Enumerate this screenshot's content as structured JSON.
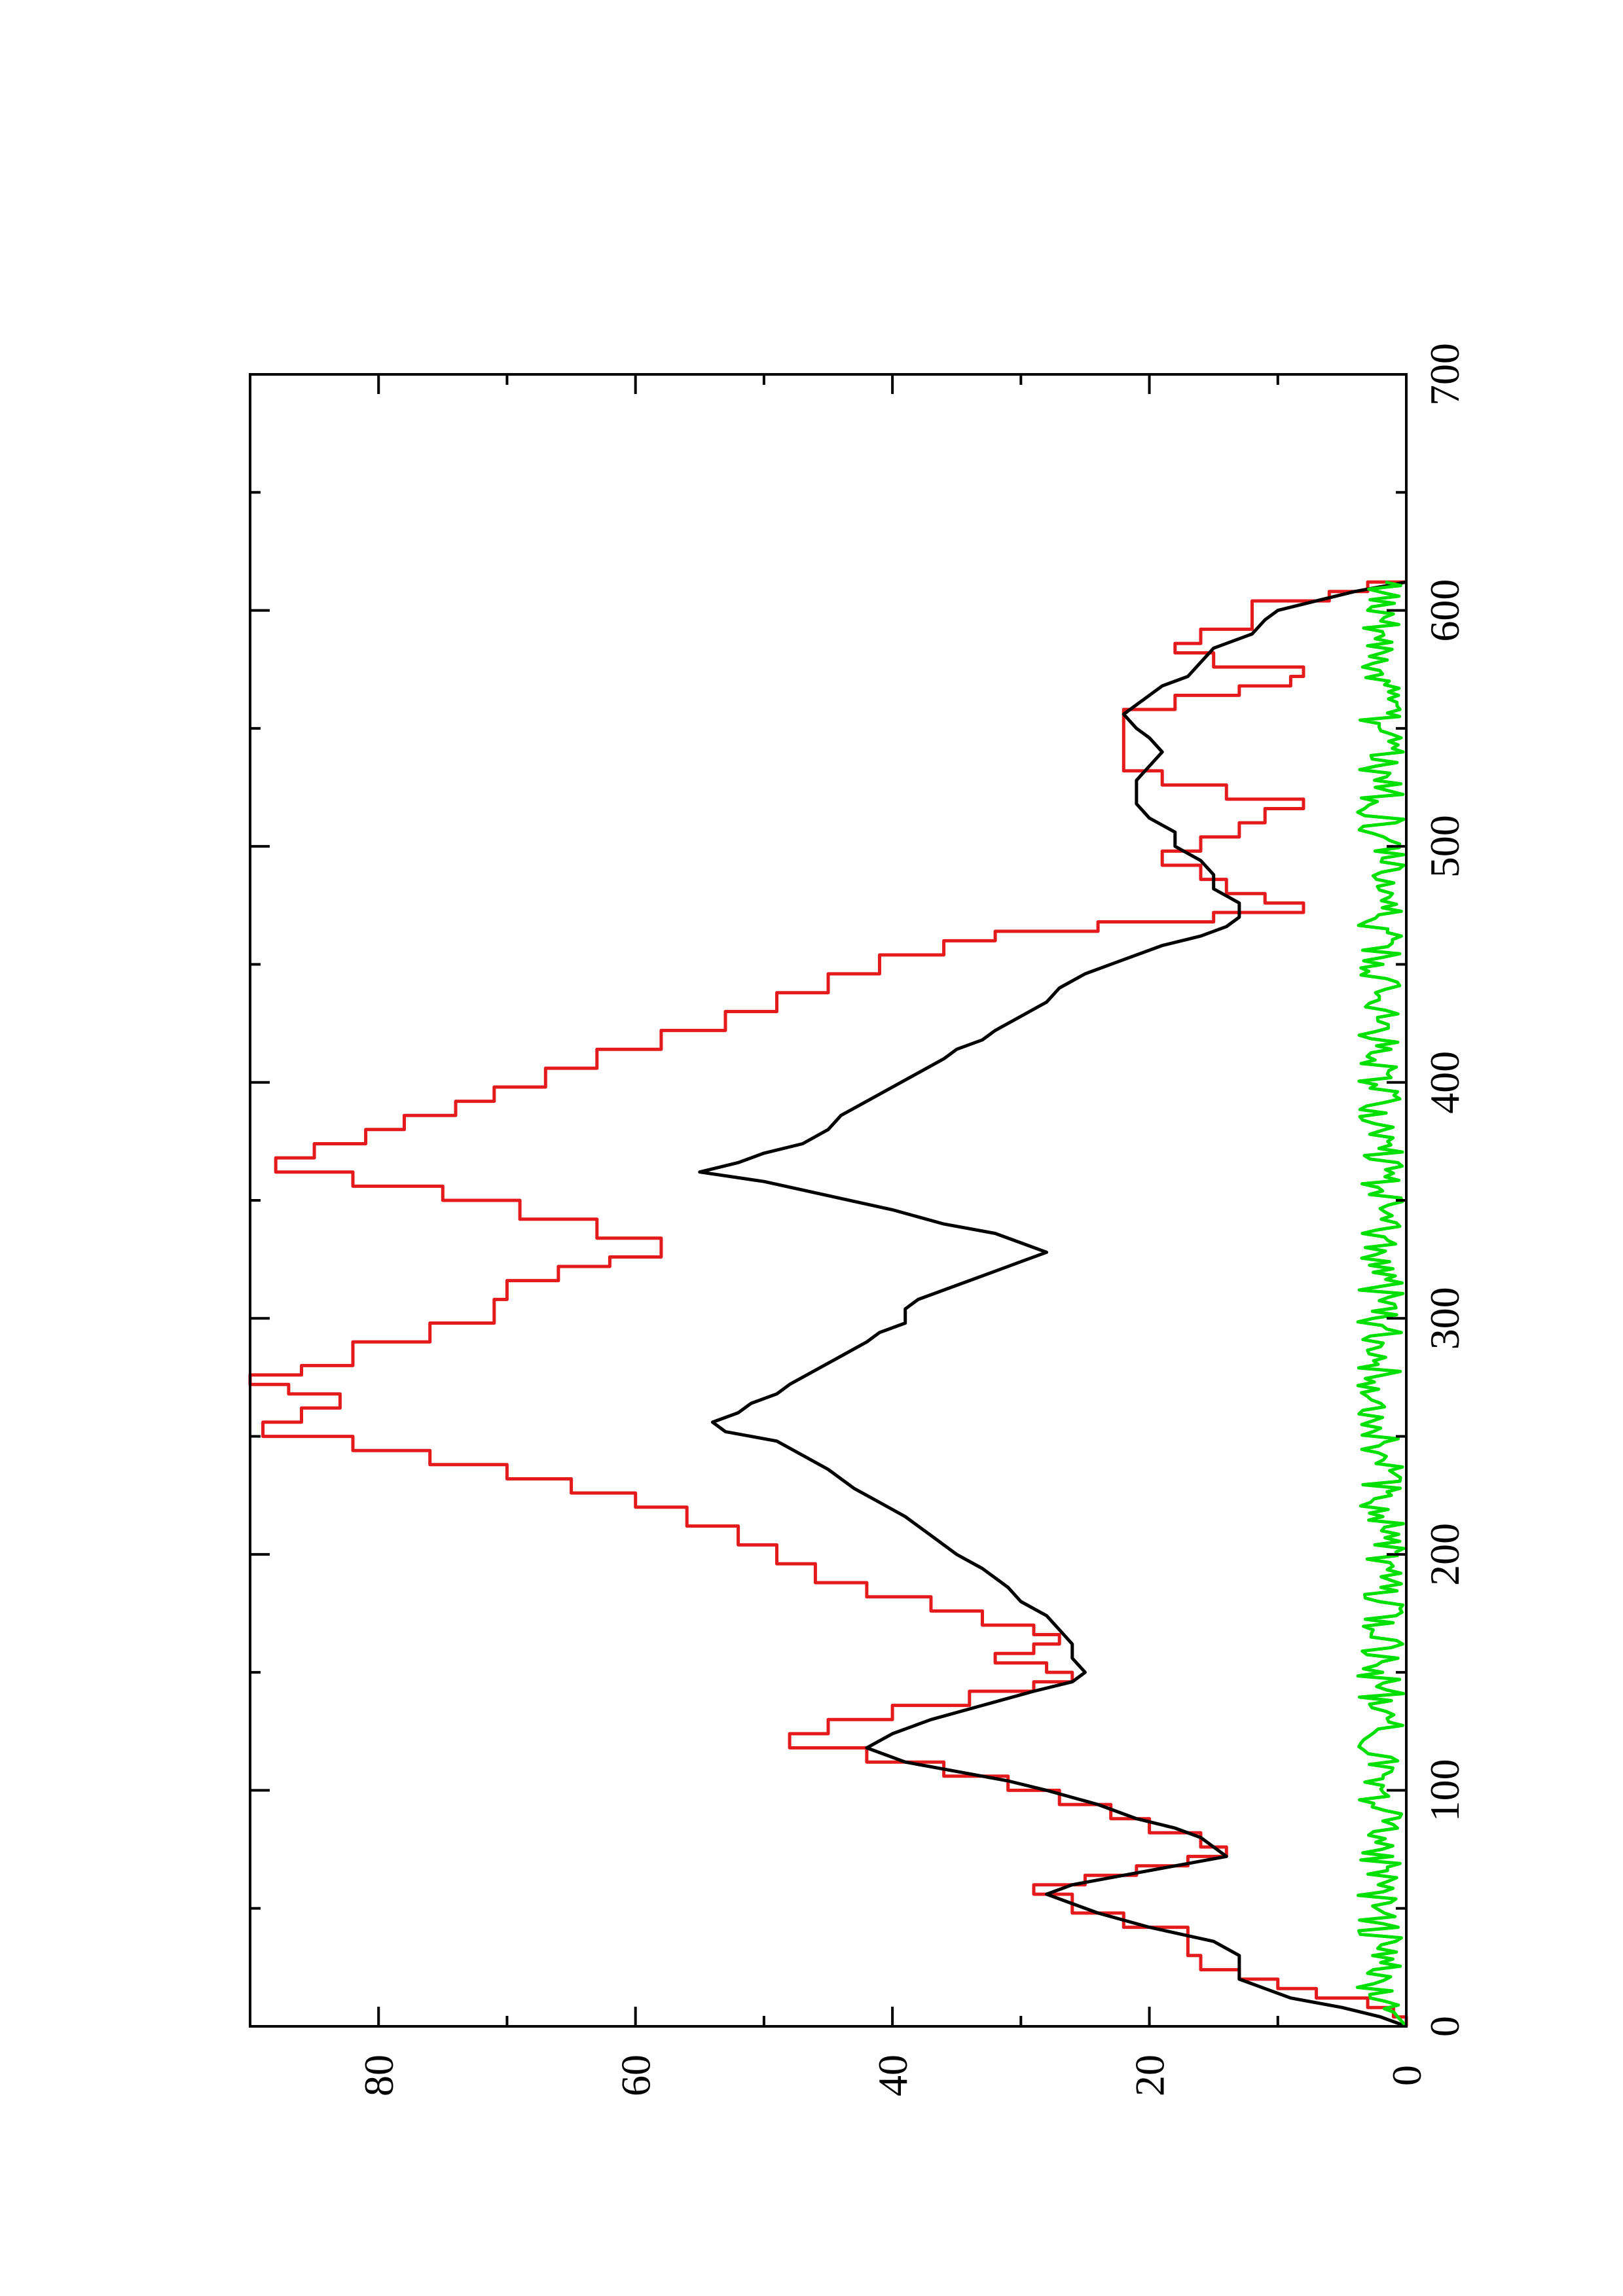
{
  "chart_data": {
    "type": "line",
    "orientation": "rotated 90 degrees counter-clockwise (x axis runs bottom-to-top on the page)",
    "title": "",
    "xlabel": "",
    "ylabel": "",
    "xlim": [
      0,
      700
    ],
    "ylim": [
      0,
      90
    ],
    "x_ticks": [
      0,
      100,
      200,
      300,
      400,
      500,
      600,
      700
    ],
    "x_tick_labels": [
      "0",
      "100",
      "200",
      "300",
      "400",
      "500",
      "600",
      "700"
    ],
    "x_minor_ticks": [
      50,
      150,
      250,
      350,
      450,
      550,
      650
    ],
    "y_ticks": [
      0,
      20,
      40,
      60,
      80
    ],
    "y_tick_labels": [
      "0",
      "20",
      "40",
      "60",
      "80"
    ],
    "y_minor_ticks": [
      10,
      30,
      50,
      70
    ],
    "grid": false,
    "legend": "none",
    "series": [
      {
        "color": "#e41a1c",
        "step": true,
        "points": [
          [
            0,
            0
          ],
          [
            4,
            1
          ],
          [
            8,
            3
          ],
          [
            12,
            7
          ],
          [
            16,
            10
          ],
          [
            20,
            13
          ],
          [
            24,
            16
          ],
          [
            30,
            17
          ],
          [
            36,
            17
          ],
          [
            42,
            22
          ],
          [
            48,
            26
          ],
          [
            56,
            29
          ],
          [
            60,
            25
          ],
          [
            64,
            21
          ],
          [
            68,
            17
          ],
          [
            72,
            14
          ],
          [
            76,
            16
          ],
          [
            82,
            20
          ],
          [
            88,
            23
          ],
          [
            94,
            27
          ],
          [
            100,
            31
          ],
          [
            106,
            36
          ],
          [
            112,
            42
          ],
          [
            118,
            48
          ],
          [
            124,
            45
          ],
          [
            130,
            40
          ],
          [
            136,
            34
          ],
          [
            142,
            29
          ],
          [
            146,
            26
          ],
          [
            150,
            28
          ],
          [
            154,
            32
          ],
          [
            158,
            29
          ],
          [
            162,
            27
          ],
          [
            166,
            29
          ],
          [
            170,
            33
          ],
          [
            176,
            37
          ],
          [
            182,
            42
          ],
          [
            188,
            46
          ],
          [
            196,
            49
          ],
          [
            204,
            52
          ],
          [
            212,
            56
          ],
          [
            220,
            60
          ],
          [
            226,
            65
          ],
          [
            232,
            70
          ],
          [
            238,
            76
          ],
          [
            244,
            82
          ],
          [
            250,
            89
          ],
          [
            256,
            86
          ],
          [
            262,
            83
          ],
          [
            268,
            87
          ],
          [
            272,
            90
          ],
          [
            276,
            86
          ],
          [
            280,
            82
          ],
          [
            290,
            76
          ],
          [
            298,
            71
          ],
          [
            308,
            70
          ],
          [
            316,
            66
          ],
          [
            322,
            62
          ],
          [
            326,
            58
          ],
          [
            334,
            63
          ],
          [
            342,
            69
          ],
          [
            350,
            75
          ],
          [
            356,
            82
          ],
          [
            362,
            88
          ],
          [
            368,
            85
          ],
          [
            374,
            81
          ],
          [
            380,
            78
          ],
          [
            386,
            74
          ],
          [
            392,
            71
          ],
          [
            398,
            67
          ],
          [
            406,
            63
          ],
          [
            414,
            58
          ],
          [
            422,
            53
          ],
          [
            430,
            49
          ],
          [
            438,
            45
          ],
          [
            446,
            41
          ],
          [
            454,
            36
          ],
          [
            460,
            32
          ],
          [
            464,
            24
          ],
          [
            468,
            15
          ],
          [
            472,
            8
          ],
          [
            476,
            11
          ],
          [
            480,
            14
          ],
          [
            486,
            16
          ],
          [
            492,
            19
          ],
          [
            498,
            16
          ],
          [
            504,
            13
          ],
          [
            510,
            11
          ],
          [
            516,
            8
          ],
          [
            520,
            14
          ],
          [
            526,
            19
          ],
          [
            532,
            22
          ],
          [
            538,
            22
          ],
          [
            546,
            22
          ],
          [
            552,
            22
          ],
          [
            558,
            18
          ],
          [
            564,
            13
          ],
          [
            568,
            9
          ],
          [
            572,
            8
          ],
          [
            576,
            15
          ],
          [
            582,
            18
          ],
          [
            586,
            16
          ],
          [
            592,
            12
          ],
          [
            598,
            12
          ],
          [
            604,
            6
          ],
          [
            608,
            3
          ],
          [
            612,
            0
          ]
        ]
      },
      {
        "color": "#000000",
        "step": false,
        "points": [
          [
            0,
            0
          ],
          [
            4,
            2
          ],
          [
            8,
            5
          ],
          [
            12,
            9
          ],
          [
            16,
            11
          ],
          [
            20,
            13
          ],
          [
            24,
            13
          ],
          [
            30,
            13
          ],
          [
            36,
            15
          ],
          [
            42,
            20
          ],
          [
            48,
            24
          ],
          [
            56,
            28
          ],
          [
            60,
            26
          ],
          [
            64,
            22
          ],
          [
            68,
            18
          ],
          [
            72,
            14
          ],
          [
            76,
            15
          ],
          [
            80,
            16
          ],
          [
            84,
            18
          ],
          [
            88,
            21
          ],
          [
            94,
            24
          ],
          [
            100,
            28
          ],
          [
            104,
            31
          ],
          [
            108,
            35
          ],
          [
            112,
            39
          ],
          [
            118,
            42
          ],
          [
            124,
            40
          ],
          [
            130,
            37
          ],
          [
            136,
            33
          ],
          [
            142,
            29
          ],
          [
            146,
            26
          ],
          [
            150,
            25
          ],
          [
            156,
            26
          ],
          [
            162,
            26
          ],
          [
            168,
            27
          ],
          [
            174,
            28
          ],
          [
            180,
            30
          ],
          [
            186,
            31
          ],
          [
            194,
            33
          ],
          [
            200,
            35
          ],
          [
            208,
            37
          ],
          [
            216,
            39
          ],
          [
            222,
            41
          ],
          [
            228,
            43
          ],
          [
            236,
            45
          ],
          [
            242,
            47
          ],
          [
            248,
            49
          ],
          [
            252,
            53
          ],
          [
            256,
            54
          ],
          [
            260,
            52
          ],
          [
            264,
            51
          ],
          [
            268,
            49
          ],
          [
            272,
            48
          ],
          [
            278,
            46
          ],
          [
            284,
            44
          ],
          [
            290,
            42
          ],
          [
            294,
            41
          ],
          [
            298,
            39
          ],
          [
            304,
            39
          ],
          [
            308,
            38
          ],
          [
            312,
            36
          ],
          [
            316,
            34
          ],
          [
            320,
            32
          ],
          [
            324,
            30
          ],
          [
            328,
            28
          ],
          [
            332,
            30
          ],
          [
            336,
            32
          ],
          [
            340,
            36
          ],
          [
            346,
            40
          ],
          [
            352,
            45
          ],
          [
            358,
            50
          ],
          [
            362,
            55
          ],
          [
            366,
            52
          ],
          [
            370,
            50
          ],
          [
            374,
            47
          ],
          [
            380,
            45
          ],
          [
            386,
            44
          ],
          [
            392,
            42
          ],
          [
            398,
            40
          ],
          [
            404,
            38
          ],
          [
            410,
            36
          ],
          [
            414,
            35
          ],
          [
            418,
            33
          ],
          [
            422,
            32
          ],
          [
            428,
            30
          ],
          [
            434,
            28
          ],
          [
            440,
            27
          ],
          [
            446,
            25
          ],
          [
            452,
            22
          ],
          [
            458,
            19
          ],
          [
            462,
            16
          ],
          [
            466,
            14
          ],
          [
            470,
            13
          ],
          [
            476,
            13
          ],
          [
            482,
            15
          ],
          [
            488,
            15
          ],
          [
            494,
            16
          ],
          [
            500,
            18
          ],
          [
            506,
            18
          ],
          [
            512,
            20
          ],
          [
            518,
            21
          ],
          [
            522,
            21
          ],
          [
            528,
            21
          ],
          [
            534,
            20
          ],
          [
            540,
            19
          ],
          [
            546,
            20
          ],
          [
            550,
            21
          ],
          [
            556,
            22
          ],
          [
            560,
            21
          ],
          [
            564,
            20
          ],
          [
            568,
            19
          ],
          [
            572,
            17
          ],
          [
            578,
            16
          ],
          [
            584,
            15
          ],
          [
            590,
            12
          ],
          [
            596,
            11
          ],
          [
            600,
            10
          ],
          [
            604,
            7
          ],
          [
            608,
            4
          ],
          [
            612,
            0
          ]
        ]
      },
      {
        "color": "#00e000",
        "step": false,
        "noisy": true,
        "points": [
          [
            0,
            0
          ],
          [
            6,
            1
          ],
          [
            12,
            3
          ],
          [
            20,
            2
          ],
          [
            30,
            2
          ],
          [
            50,
            2
          ],
          [
            100,
            2
          ],
          [
            150,
            2
          ],
          [
            200,
            2
          ],
          [
            250,
            2
          ],
          [
            300,
            2
          ],
          [
            350,
            2
          ],
          [
            400,
            2
          ],
          [
            450,
            2
          ],
          [
            500,
            2
          ],
          [
            550,
            2
          ],
          [
            600,
            2
          ],
          [
            612,
            2
          ]
        ],
        "noise_amplitude": 1.8
      }
    ]
  }
}
